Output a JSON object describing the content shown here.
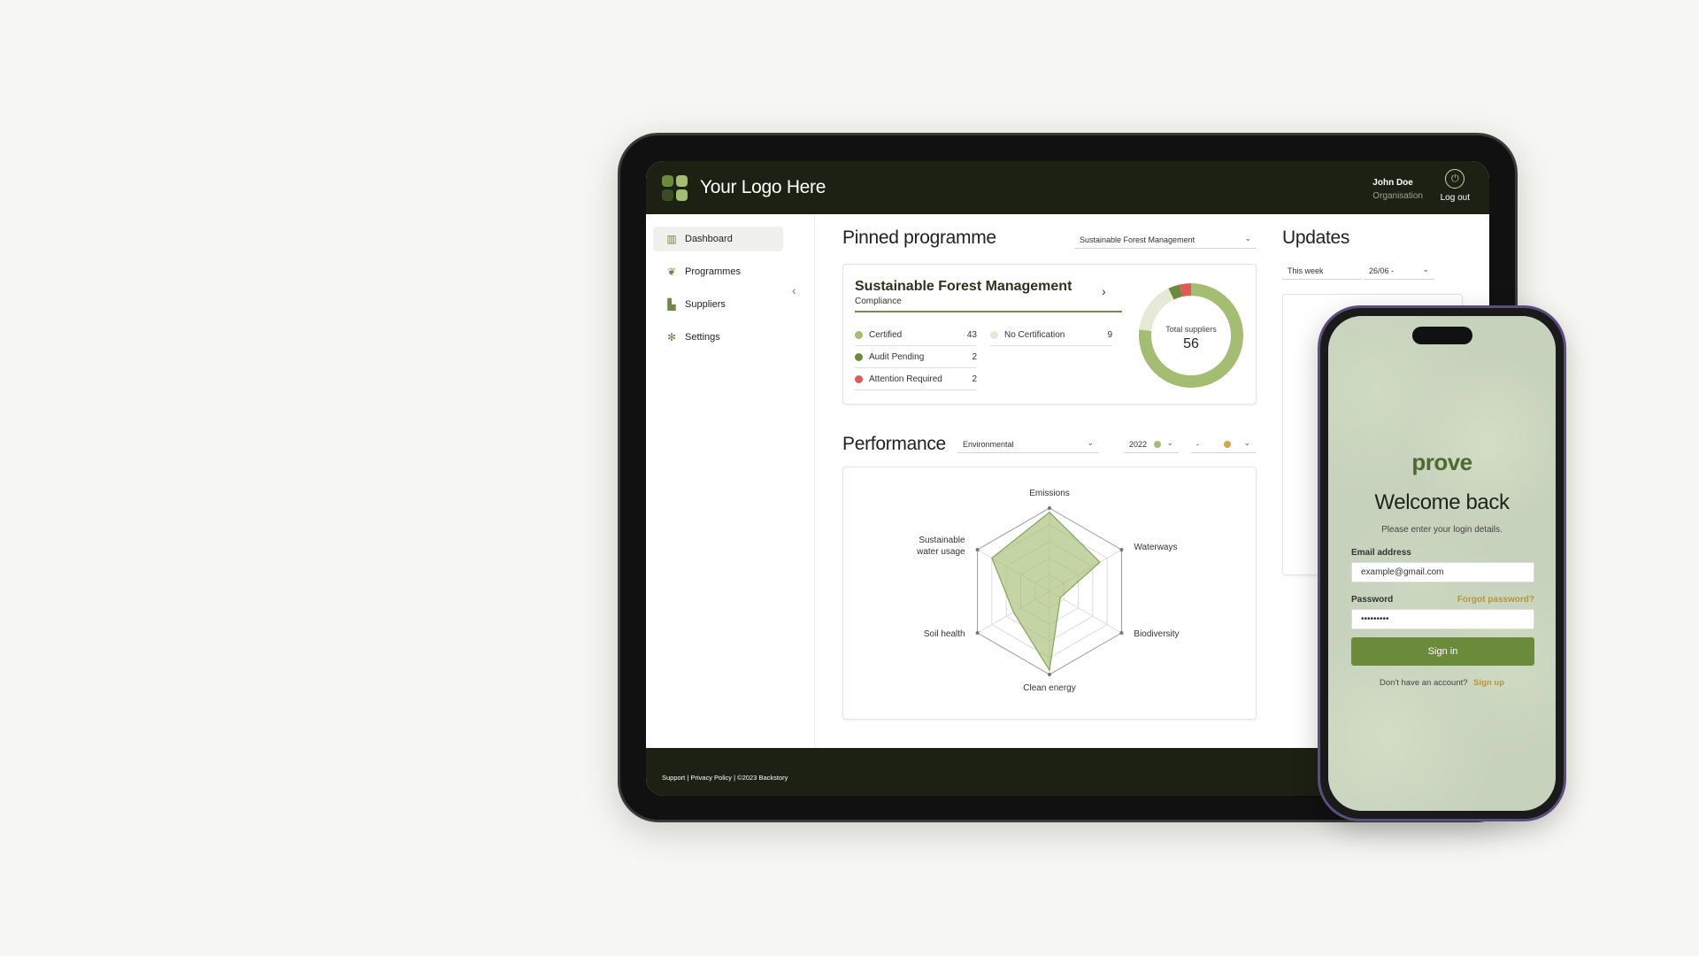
{
  "colors": {
    "dark": "#1d2114",
    "accent_green": "#6b8a3a",
    "certified": "#a4bd73",
    "audit_pending": "#6b8a3a",
    "attention": "#e05a5a",
    "no_cert": "#e6e8d8",
    "gold": "#b5963f"
  },
  "tablet": {
    "header": {
      "logo_text": "Your Logo Here",
      "user_name": "John Doe",
      "user_org": "Organisation",
      "logout_label": "Log out"
    },
    "sidebar": {
      "items": [
        {
          "label": "Dashboard",
          "icon": "bar-chart-icon"
        },
        {
          "label": "Programmes",
          "icon": "leaf-icon"
        },
        {
          "label": "Suppliers",
          "icon": "factory-icon"
        },
        {
          "label": "Settings",
          "icon": "gear-icon"
        }
      ]
    },
    "pinned": {
      "title": "Pinned programme",
      "select_value": "Sustainable Forest Management",
      "card": {
        "name": "Sustainable Forest Management",
        "subtitle": "Compliance",
        "stats": [
          {
            "label": "Certified",
            "value": "43"
          },
          {
            "label": "Audit Pending",
            "value": "2"
          },
          {
            "label": "Attention Required",
            "value": "2"
          },
          {
            "label": "No Certification",
            "value": "9"
          }
        ],
        "donut_label": "Total suppliers",
        "donut_total": "56"
      }
    },
    "performance": {
      "title": "Performance",
      "category_select": "Environmental",
      "year_select": "2022",
      "compare_select": "-"
    },
    "updates": {
      "title": "Updates",
      "period_select": "This week",
      "date_select": "26/06 -"
    },
    "footer": {
      "text": "Support | Privacy Policy | ©2023 Backstory"
    }
  },
  "chart_data": {
    "type": "radar",
    "categories": [
      "Emissions",
      "Waterways",
      "Biodiversity",
      "Clean energy",
      "Soil health",
      "Sustainable water usage"
    ],
    "category_lines": [
      [
        "Emissions"
      ],
      [
        "Waterways"
      ],
      [
        "Biodiversity"
      ],
      [
        "Clean energy"
      ],
      [
        "Soil health"
      ],
      [
        "Sustainable",
        "water usage"
      ]
    ],
    "series": [
      {
        "values": [
          0.95,
          0.7,
          0.15,
          0.95,
          0.5,
          0.8
        ]
      }
    ],
    "rings": 5,
    "color": "#a4bd73"
  },
  "donut_data": {
    "segments": [
      {
        "label": "Certified",
        "value": 43
      },
      {
        "label": "No Certification",
        "value": 9
      },
      {
        "label": "Audit Pending",
        "value": 2
      },
      {
        "label": "Attention Required",
        "value": 2
      }
    ]
  },
  "phone": {
    "brand": "prove",
    "welcome": "Welcome back",
    "subtitle": "Please enter your login details.",
    "email_label": "Email address",
    "email_value": "example@gmail.com",
    "password_label": "Password",
    "password_value": "•••••••••",
    "forgot_label": "Forgot password?",
    "signin_label": "Sign in",
    "signup_prompt": "Don't have an account?",
    "signup_label": "Sign up"
  }
}
